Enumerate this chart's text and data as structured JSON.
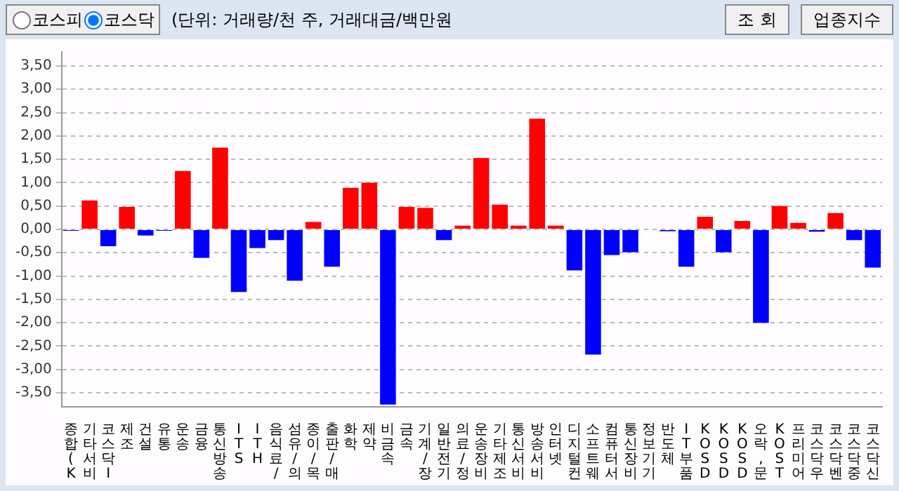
{
  "chart_data": {
    "type": "bar",
    "annotations": [
      "코스피",
      "코스닥",
      "(단위: 거래량/천 주, 거래대금/백만원",
      "조 회",
      "업종지수"
    ],
    "categories": [
      "종합(K",
      "기타서비",
      "코스닥I",
      "제조",
      "건설",
      "유통",
      "운송",
      "금융",
      "통신방송",
      "ITS",
      "ITH",
      "음식료/",
      "섬유/의",
      "종이/목",
      "출판/매",
      "화학",
      "제약",
      "비금속",
      "금속",
      "기계/장",
      "일반전기",
      "의료/정",
      "운송장비",
      "기타제조",
      "통신서비",
      "방송서비",
      "인터넷",
      "디지털컨",
      "소프트웨",
      "컴퓨터서",
      "통신장비",
      "정보기기",
      "반도체",
      "IT부품",
      "KOSD",
      "KOSD",
      "KOSD",
      "오락,문",
      "KOST",
      "프리미어",
      "코스닥우",
      "코스닥벤",
      "코스닥중",
      "코스닥신"
    ],
    "values": [
      -0.03,
      0.62,
      -0.36,
      0.48,
      -0.13,
      -0.03,
      1.25,
      -0.61,
      1.75,
      -1.34,
      -0.4,
      -0.23,
      -1.1,
      0.16,
      -0.8,
      0.89,
      1.0,
      -3.75,
      0.48,
      0.46,
      -0.23,
      0.08,
      1.53,
      0.53,
      0.08,
      2.37,
      0.08,
      -0.88,
      -2.68,
      -0.55,
      -0.49,
      0,
      -0.04,
      -0.8,
      0.27,
      -0.49,
      0.18,
      -2.0,
      0.5,
      0.14,
      -0.05,
      0.35,
      -0.23,
      -0.82
    ],
    "colors": [
      "#0000ff",
      "#ff0000",
      "#0000ff",
      "#ff0000",
      "#0000ff",
      "#0000ff",
      "#ff0000",
      "#0000ff",
      "#ff0000",
      "#0000ff",
      "#0000ff",
      "#0000ff",
      "#0000ff",
      "#ff0000",
      "#0000ff",
      "#ff0000",
      "#ff0000",
      "#0000ff",
      "#ff0000",
      "#ff0000",
      "#0000ff",
      "#ff0000",
      "#ff0000",
      "#ff0000",
      "#ff0000",
      "#ff0000",
      "#ff0000",
      "#0000ff",
      "#0000ff",
      "#0000ff",
      "#0000ff",
      "#ff0000",
      "#0000ff",
      "#0000ff",
      "#ff0000",
      "#0000ff",
      "#ff0000",
      "#0000ff",
      "#ff0000",
      "#ff0000",
      "#0000ff",
      "#ff0000",
      "#0000ff",
      "#0000ff"
    ],
    "ylim": [
      -3.8,
      3.8
    ],
    "yticks": [
      {
        "value": -3.5,
        "label": "-3,50"
      },
      {
        "value": -3,
        "label": "-3,00"
      },
      {
        "value": -2.5,
        "label": "-2,50"
      },
      {
        "value": -2,
        "label": "-2,00"
      },
      {
        "value": -1.5,
        "label": "-1,50"
      },
      {
        "value": -1,
        "label": "-1,00"
      },
      {
        "value": -0.5,
        "label": "-0,50"
      },
      {
        "value": 0,
        "label": "0,00"
      },
      {
        "value": 0.5,
        "label": "0,50"
      },
      {
        "value": 1,
        "label": "1,00"
      },
      {
        "value": 1.5,
        "label": "1,50"
      },
      {
        "value": 2,
        "label": "2,00"
      },
      {
        "value": 2.5,
        "label": "2,50"
      },
      {
        "value": 3,
        "label": "3,00"
      },
      {
        "value": 3.5,
        "label": "3,50"
      }
    ],
    "grid": "y",
    "legend": false
  }
}
